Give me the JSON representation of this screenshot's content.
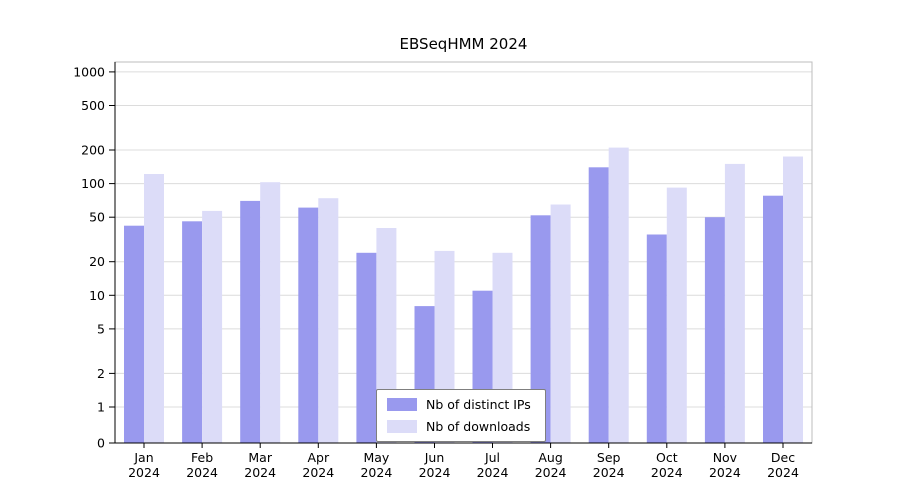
{
  "title": "EBSeqHMM 2024",
  "chart_data": {
    "type": "bar",
    "title": "EBSeqHMM 2024",
    "xlabel": "",
    "ylabel": "",
    "yscale": "log-like (0,1,2,5,10,20,50,100,200,500,1000)",
    "ylim": [
      0,
      1000
    ],
    "grid": true,
    "legend_position": "bottom-center-inside",
    "category_year": "2024",
    "categories": [
      "Jan",
      "Feb",
      "Mar",
      "Apr",
      "May",
      "Jun",
      "Jul",
      "Aug",
      "Sep",
      "Oct",
      "Nov",
      "Dec"
    ],
    "yticks": [
      0,
      1,
      2,
      5,
      10,
      20,
      50,
      100,
      200,
      500,
      1000
    ],
    "series": [
      {
        "name": "Nb of distinct IPs",
        "color": "#9999ee",
        "values": [
          42,
          46,
          70,
          61,
          24,
          8,
          11,
          52,
          140,
          35,
          50,
          78
        ]
      },
      {
        "name": "Nb of downloads",
        "color": "#dcdcf8",
        "values": [
          122,
          57,
          103,
          74,
          40,
          25,
          24,
          65,
          210,
          92,
          150,
          175
        ]
      }
    ]
  }
}
